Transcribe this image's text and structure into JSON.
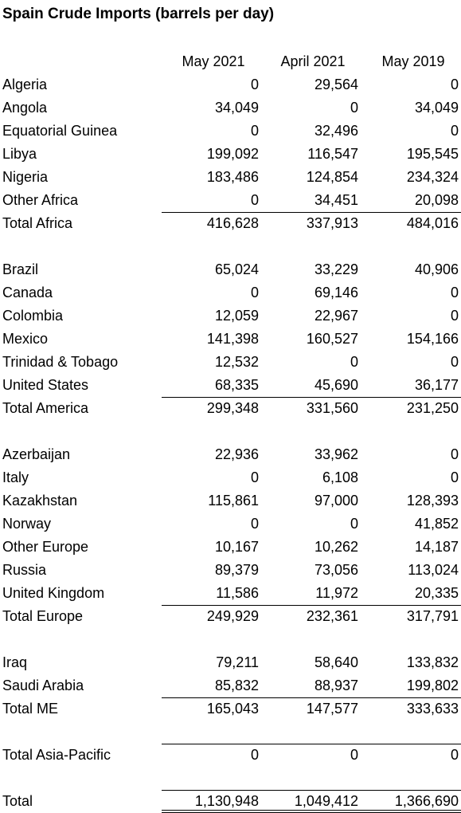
{
  "title": "Spain Crude Imports (barrels per day)",
  "columns": [
    "May 2021",
    "April 2021",
    "May 2019"
  ],
  "sections": [
    {
      "rows": [
        {
          "label": "Algeria",
          "values": [
            "0",
            "29,564",
            "0"
          ]
        },
        {
          "label": "Angola",
          "values": [
            "34,049",
            "0",
            "34,049"
          ]
        },
        {
          "label": "Equatorial Guinea",
          "values": [
            "0",
            "32,496",
            "0"
          ]
        },
        {
          "label": "Libya",
          "values": [
            "199,092",
            "116,547",
            "195,545"
          ]
        },
        {
          "label": "Nigeria",
          "values": [
            "183,486",
            "124,854",
            "234,324"
          ]
        },
        {
          "label": "Other Africa",
          "values": [
            "0",
            "34,451",
            "20,098"
          ]
        }
      ],
      "total": {
        "label": "Total Africa",
        "values": [
          "416,628",
          "337,913",
          "484,016"
        ]
      }
    },
    {
      "rows": [
        {
          "label": "Brazil",
          "values": [
            "65,024",
            "33,229",
            "40,906"
          ]
        },
        {
          "label": "Canada",
          "values": [
            "0",
            "69,146",
            "0"
          ]
        },
        {
          "label": "Colombia",
          "values": [
            "12,059",
            "22,967",
            "0"
          ]
        },
        {
          "label": "Mexico",
          "values": [
            "141,398",
            "160,527",
            "154,166"
          ]
        },
        {
          "label": "Trinidad & Tobago",
          "values": [
            "12,532",
            "0",
            "0"
          ]
        },
        {
          "label": "United States",
          "values": [
            "68,335",
            "45,690",
            "36,177"
          ]
        }
      ],
      "total": {
        "label": "Total America",
        "values": [
          "299,348",
          "331,560",
          "231,250"
        ]
      }
    },
    {
      "rows": [
        {
          "label": "Azerbaijan",
          "values": [
            "22,936",
            "33,962",
            "0"
          ]
        },
        {
          "label": "Italy",
          "values": [
            "0",
            "6,108",
            "0"
          ]
        },
        {
          "label": "Kazakhstan",
          "values": [
            "115,861",
            "97,000",
            "128,393"
          ]
        },
        {
          "label": "Norway",
          "values": [
            "0",
            "0",
            "41,852"
          ]
        },
        {
          "label": "Other Europe",
          "values": [
            "10,167",
            "10,262",
            "14,187"
          ]
        },
        {
          "label": "Russia",
          "values": [
            "89,379",
            "73,056",
            "113,024"
          ]
        },
        {
          "label": "United Kingdom",
          "values": [
            "11,586",
            "11,972",
            "20,335"
          ]
        }
      ],
      "total": {
        "label": "Total Europe",
        "values": [
          "249,929",
          "232,361",
          "317,791"
        ]
      }
    },
    {
      "rows": [
        {
          "label": "Iraq",
          "values": [
            "79,211",
            "58,640",
            "133,832"
          ]
        },
        {
          "label": "Saudi Arabia",
          "values": [
            "85,832",
            "88,937",
            "199,802"
          ]
        }
      ],
      "total": {
        "label": "Total ME",
        "values": [
          "165,043",
          "147,577",
          "333,633"
        ]
      }
    },
    {
      "rows": [],
      "total": {
        "label": "Total Asia-Pacific",
        "values": [
          "0",
          "0",
          "0"
        ]
      }
    }
  ],
  "grand_total": {
    "label": "Total",
    "values": [
      "1,130,948",
      "1,049,412",
      "1,366,690"
    ]
  }
}
